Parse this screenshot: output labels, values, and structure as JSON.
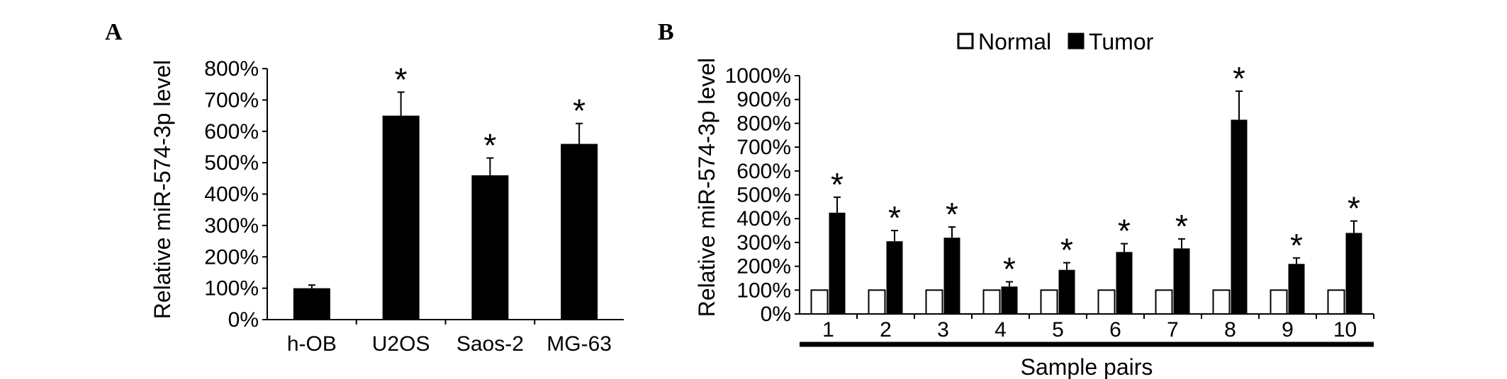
{
  "chart_data": [
    {
      "panel": "A",
      "type": "bar",
      "categories": [
        "h-OB",
        "U2OS",
        "Saos-2",
        "MG-63"
      ],
      "values": [
        100,
        650,
        460,
        560
      ],
      "errors": [
        10,
        75,
        55,
        65
      ],
      "significant": [
        false,
        true,
        true,
        true
      ],
      "significance_marker": "*",
      "ylabel": "Relative  miR-574-3p level",
      "xlabel": "",
      "ylim": [
        0,
        800
      ],
      "yticks": [
        "0%",
        "100%",
        "200%",
        "300%",
        "400%",
        "500%",
        "600%",
        "700%",
        "800%"
      ],
      "bar_color": "#000000"
    },
    {
      "panel": "B",
      "type": "bar",
      "categories": [
        "1",
        "2",
        "3",
        "4",
        "5",
        "6",
        "7",
        "8",
        "9",
        "10"
      ],
      "series": [
        {
          "name": "Normal",
          "values": [
            100,
            100,
            100,
            100,
            100,
            100,
            100,
            100,
            100,
            100
          ],
          "fill": "#ffffff"
        },
        {
          "name": "Tumor",
          "values": [
            425,
            305,
            320,
            115,
            185,
            260,
            275,
            815,
            210,
            340
          ],
          "errors": [
            65,
            45,
            45,
            20,
            30,
            35,
            40,
            120,
            25,
            50
          ],
          "fill": "#000000"
        }
      ],
      "significant": [
        true,
        true,
        true,
        true,
        true,
        true,
        true,
        true,
        true,
        true
      ],
      "significance_marker": "*",
      "ylabel": "Relative  miR-574-3p level",
      "xlabel": "Sample pairs",
      "ylim": [
        0,
        1000
      ],
      "yticks": [
        "0%",
        "100%",
        "200%",
        "300%",
        "400%",
        "500%",
        "600%",
        "700%",
        "800%",
        "900%",
        "1000%"
      ],
      "legend_position": "top"
    }
  ]
}
